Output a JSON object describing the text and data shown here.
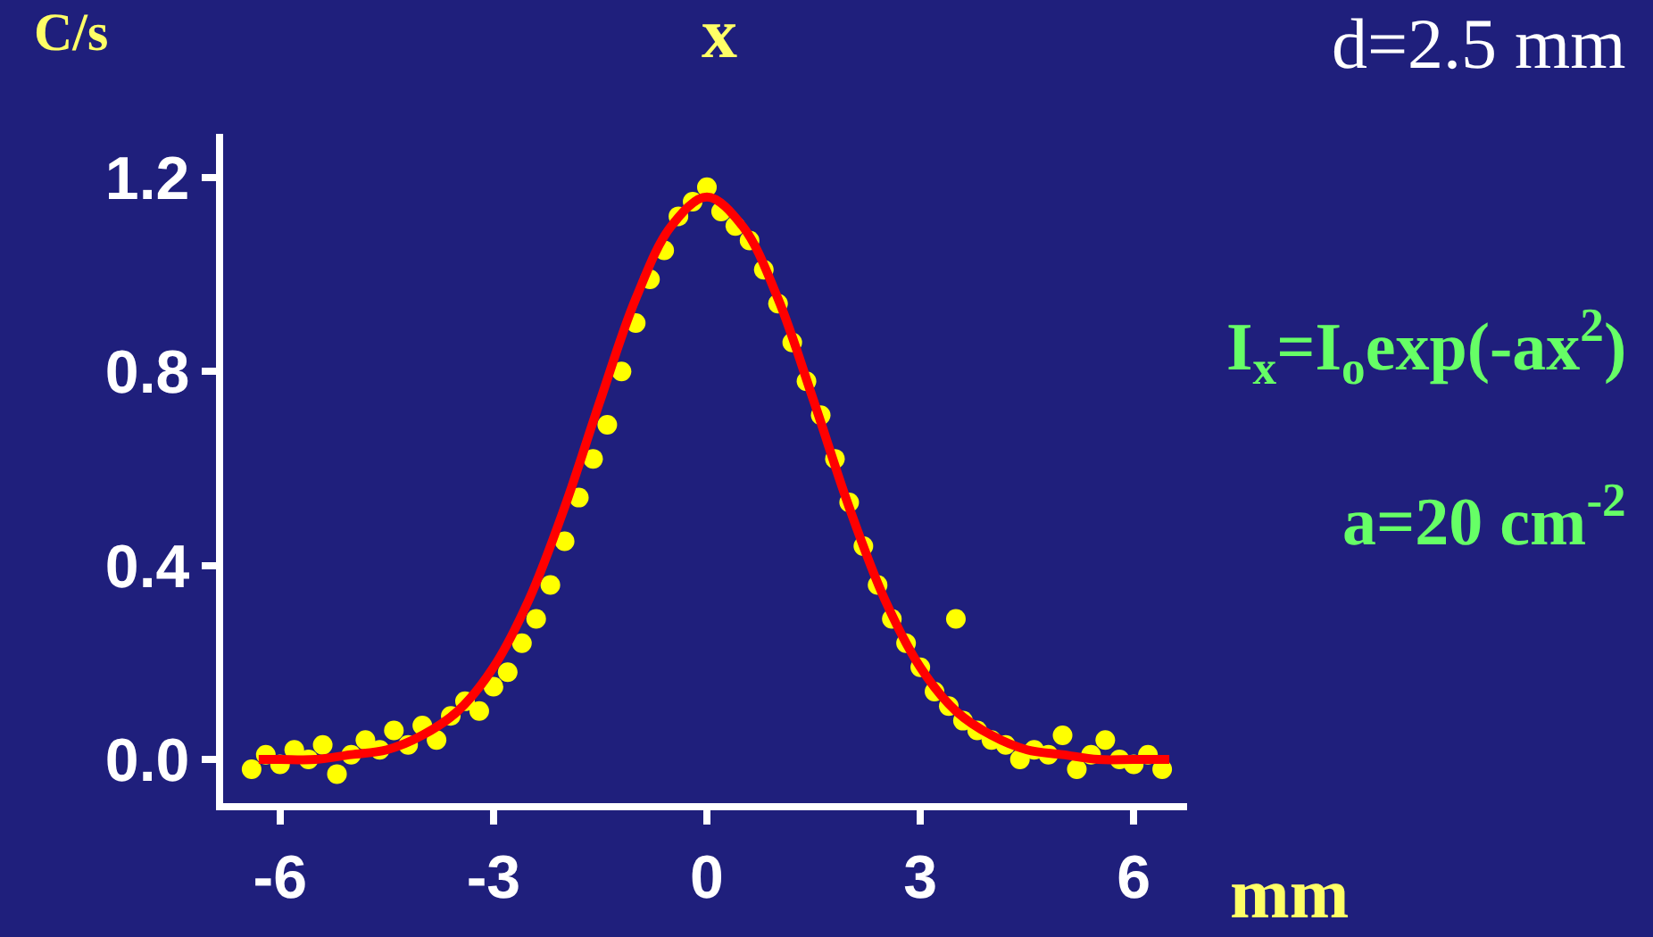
{
  "chart_data": {
    "type": "scatter",
    "title": "x",
    "xlabel": "mm",
    "ylabel": "C/s",
    "annotations": [
      "d=2.5 mm",
      "I$_{x}$=I$_{o}$exp(-ax$^{2}$)",
      "a=20 cm$^{-2}$"
    ],
    "xlim": [
      -6.8,
      6.75
    ],
    "ylim": [
      -0.09,
      1.29
    ],
    "xticks": [
      -6,
      -3,
      0,
      3,
      6
    ],
    "yticks": [
      {
        "value": 0,
        "label": "0.0"
      },
      0.4,
      0.8,
      1.2
    ],
    "grid": false,
    "marker": "circle",
    "series": [
      {
        "color": "#ffff00",
        "x": [
          -6.4,
          -6.2,
          -6.0,
          -5.8,
          -5.6,
          -5.4,
          -5.2,
          -5.0,
          -4.8,
          -4.6,
          -4.4,
          -4.2,
          -4.0,
          -3.8,
          -3.6,
          -3.4,
          -3.2,
          -3.0,
          -2.8,
          -2.6,
          -2.4,
          -2.2,
          -2.0,
          -1.8,
          -1.6,
          -1.4,
          -1.2,
          -1.0,
          -0.8,
          -0.6,
          -0.4,
          -0.2,
          0.0,
          0.2,
          0.4,
          0.6,
          0.8,
          1.0,
          1.2,
          1.4,
          1.6,
          1.8,
          2.0,
          2.2,
          2.4,
          2.6,
          2.8,
          3.0,
          3.2,
          3.4,
          3.5,
          3.6,
          3.8,
          4.0,
          4.2,
          4.4,
          4.6,
          4.8,
          5.0,
          5.2,
          5.4,
          5.6,
          5.8,
          6.0,
          6.2,
          6.4
        ],
        "values": [
          -0.02,
          0.01,
          -0.01,
          0.02,
          0.0,
          0.03,
          -0.03,
          0.01,
          0.04,
          0.02,
          0.06,
          0.03,
          0.07,
          0.04,
          0.09,
          0.12,
          0.1,
          0.15,
          0.18,
          0.24,
          0.29,
          0.36,
          0.45,
          0.54,
          0.62,
          0.69,
          0.8,
          0.9,
          0.99,
          1.05,
          1.12,
          1.15,
          1.18,
          1.13,
          1.1,
          1.07,
          1.01,
          0.94,
          0.86,
          0.78,
          0.71,
          0.62,
          0.53,
          0.44,
          0.36,
          0.29,
          0.24,
          0.19,
          0.14,
          0.11,
          0.29,
          0.08,
          0.06,
          0.04,
          0.03,
          0.0,
          0.02,
          0.01,
          0.05,
          -0.02,
          0.01,
          0.04,
          0.0,
          -0.01,
          0.01,
          -0.02
        ]
      },
      {
        "type": "line",
        "color": "#ff0000",
        "marker": "none",
        "line_style": "solid",
        "x": [
          -6.3,
          -6.0,
          -5.5,
          -5.0,
          -4.5,
          -4.0,
          -3.5,
          -3.0,
          -2.5,
          -2.0,
          -1.5,
          -1.0,
          -0.5,
          0.0,
          0.5,
          1.0,
          1.5,
          2.0,
          2.5,
          3.0,
          3.5,
          4.0,
          4.5,
          5.0,
          5.5,
          6.0,
          6.5
        ],
        "values": [
          0.0,
          0.0,
          0.0,
          0.01,
          0.02,
          0.05,
          0.1,
          0.19,
          0.33,
          0.52,
          0.74,
          0.95,
          1.1,
          1.16,
          1.1,
          0.95,
          0.74,
          0.52,
          0.33,
          0.19,
          0.1,
          0.05,
          0.02,
          0.01,
          0.0,
          0.0,
          0.0
        ]
      }
    ]
  }
}
